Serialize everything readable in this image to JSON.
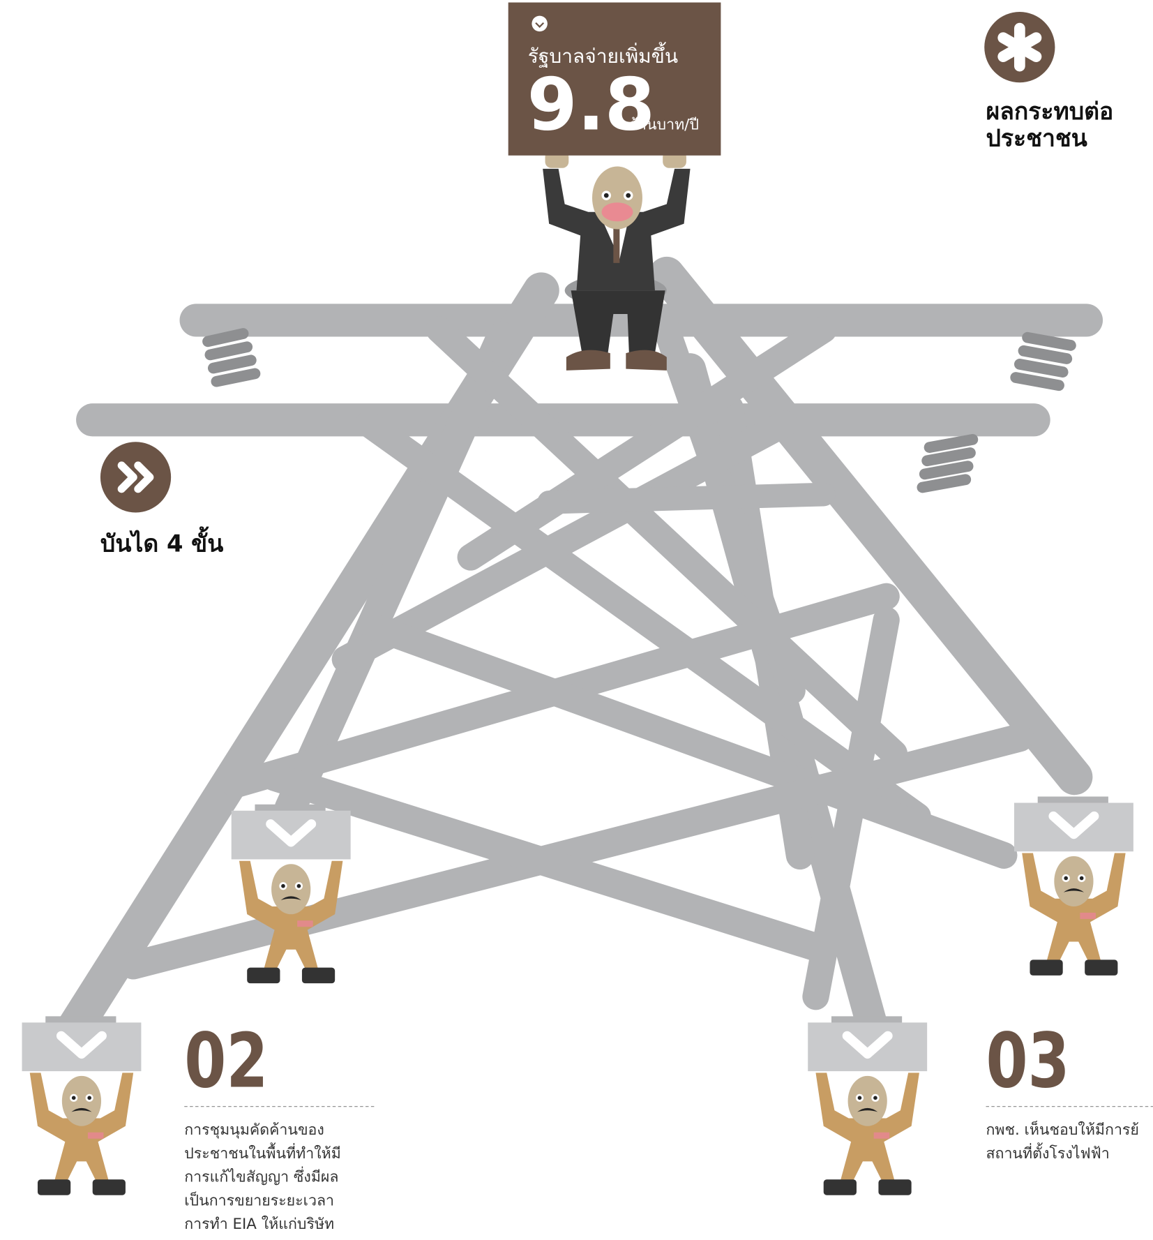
{
  "sign": {
    "caption": "รัฐบาลจ่ายเพิ่มขึ้น",
    "amount": "9.8",
    "unit": "ล้านบาท/ปี"
  },
  "impact": {
    "lines": [
      "ผลกระทบต่อ",
      "ประชาชน"
    ]
  },
  "steps": {
    "label": "บันได 4 ขั้น"
  },
  "step_02": {
    "number": "02",
    "lines": [
      "การชุมนุมคัดค้านของ",
      "ประชาชนในพื้นที่ทำให้มี",
      "การแก้ไขสัญญา ซึ่งมีผล",
      "เป็นการขยายระยะเวลา",
      "การทำ EIA ให้แก่บริษัท"
    ]
  },
  "step_03": {
    "number": "03",
    "lines": [
      "กพช. เห็นชอบให้มีการย้",
      "สถานที่ตั้งโรงไฟฟ้า"
    ]
  }
}
